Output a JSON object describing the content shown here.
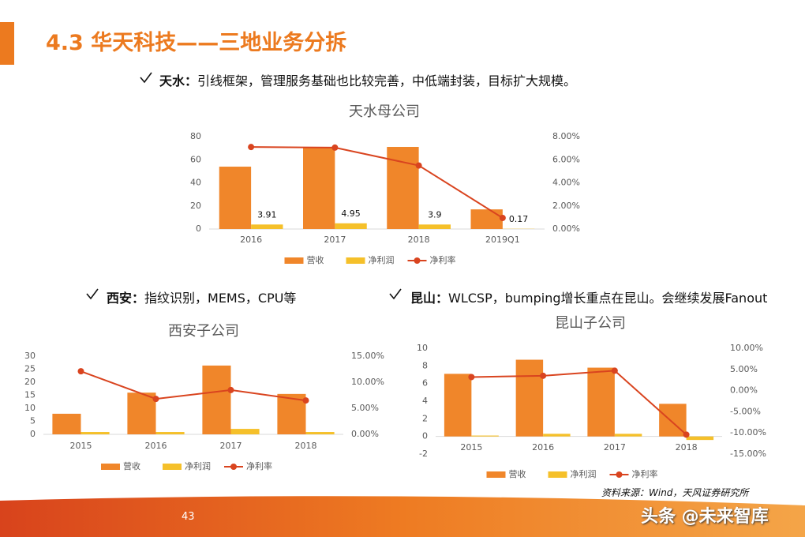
{
  "header": {
    "title": "4.3 华天科技——三地业务分拆"
  },
  "bullets": [
    {
      "label": "天水：",
      "text": "引线框架，管理服务基础也比较完善，中低端封装，目标扩大规模。"
    },
    {
      "label": "西安：",
      "text": "指纹识别，MEMS，CPU等"
    },
    {
      "label": "昆山：",
      "text": "WLCSP，bumping增长重点在昆山。会继续发展Fanout"
    }
  ],
  "chart_data": [
    {
      "type": "bar",
      "title": "天水母公司",
      "categories": [
        "2016",
        "2017",
        "2018",
        "2019Q1"
      ],
      "series": [
        {
          "name": "营收",
          "color": "#f0862a",
          "values": [
            54,
            70.4,
            71.1,
            17
          ]
        },
        {
          "name": "净利润",
          "color": "#f5c02a",
          "values": [
            3.91,
            4.95,
            3.9,
            0.17
          ],
          "show_labels": true
        },
        {
          "name": "净利率",
          "color": "#d9441f",
          "type": "line",
          "axis": "y2",
          "values": [
            7.1,
            7.05,
            5.5,
            0.96
          ]
        }
      ],
      "ylim": [
        0,
        80
      ],
      "yticks": [
        0,
        20,
        40,
        60,
        80
      ],
      "y2lim": [
        0,
        8
      ],
      "y2ticks": [
        {
          "value": 0,
          "label": "0.00%"
        },
        {
          "value": 2,
          "label": "2.00%"
        },
        {
          "value": 4,
          "label": "4.00%"
        },
        {
          "value": 6,
          "label": "6.00%"
        },
        {
          "value": 8,
          "label": "8.00%"
        }
      ],
      "legend": "bottom"
    },
    {
      "type": "bar",
      "title": "西安子公司",
      "categories": [
        "2015",
        "2016",
        "2017",
        "2018"
      ],
      "series": [
        {
          "name": "营收",
          "color": "#f0862a",
          "values": [
            7.9,
            16,
            26.4,
            15.5
          ]
        },
        {
          "name": "净利润",
          "color": "#f5c02a",
          "values": [
            0.9,
            0.9,
            2.1,
            0.9
          ]
        },
        {
          "name": "净利率",
          "color": "#d9441f",
          "type": "line",
          "axis": "y2",
          "values": [
            12.1,
            6.8,
            8.5,
            6.5
          ]
        }
      ],
      "ylim": [
        0,
        30
      ],
      "yticks": [
        0,
        5,
        10,
        15,
        20,
        25,
        30
      ],
      "y2lim": [
        0,
        15
      ],
      "y2ticks": [
        {
          "value": 0,
          "label": "0.00%"
        },
        {
          "value": 5,
          "label": "5.00%"
        },
        {
          "value": 10,
          "label": "10.00%"
        },
        {
          "value": 15,
          "label": "15.00%"
        }
      ],
      "legend": "bottom"
    },
    {
      "type": "bar",
      "title": "昆山子公司",
      "categories": [
        "2015",
        "2016",
        "2017",
        "2018"
      ],
      "series": [
        {
          "name": "营收",
          "color": "#f0862a",
          "values": [
            7.1,
            8.7,
            7.8,
            3.7
          ]
        },
        {
          "name": "净利润",
          "color": "#f5c02a",
          "values": [
            0.1,
            0.3,
            0.3,
            -0.4
          ]
        },
        {
          "name": "净利率",
          "color": "#d9441f",
          "type": "line",
          "axis": "y2",
          "values": [
            3.2,
            3.5,
            4.7,
            -10.4
          ]
        }
      ],
      "ylim": [
        -2,
        10
      ],
      "yticks": [
        -2,
        0,
        2,
        4,
        6,
        8,
        10
      ],
      "y2lim": [
        -15,
        10
      ],
      "y2ticks": [
        {
          "value": -15,
          "label": "-15.00%"
        },
        {
          "value": -10,
          "label": "-10.00%"
        },
        {
          "value": -5,
          "label": "-5.00%"
        },
        {
          "value": 0,
          "label": "0.00%"
        },
        {
          "value": 5,
          "label": "5.00%"
        },
        {
          "value": 10,
          "label": "10.00%"
        }
      ],
      "legend": "bottom"
    }
  ],
  "footer": {
    "source": "资料来源：Wind，天风证券研究所",
    "page": "43",
    "watermark": "头条 @未来智库"
  }
}
